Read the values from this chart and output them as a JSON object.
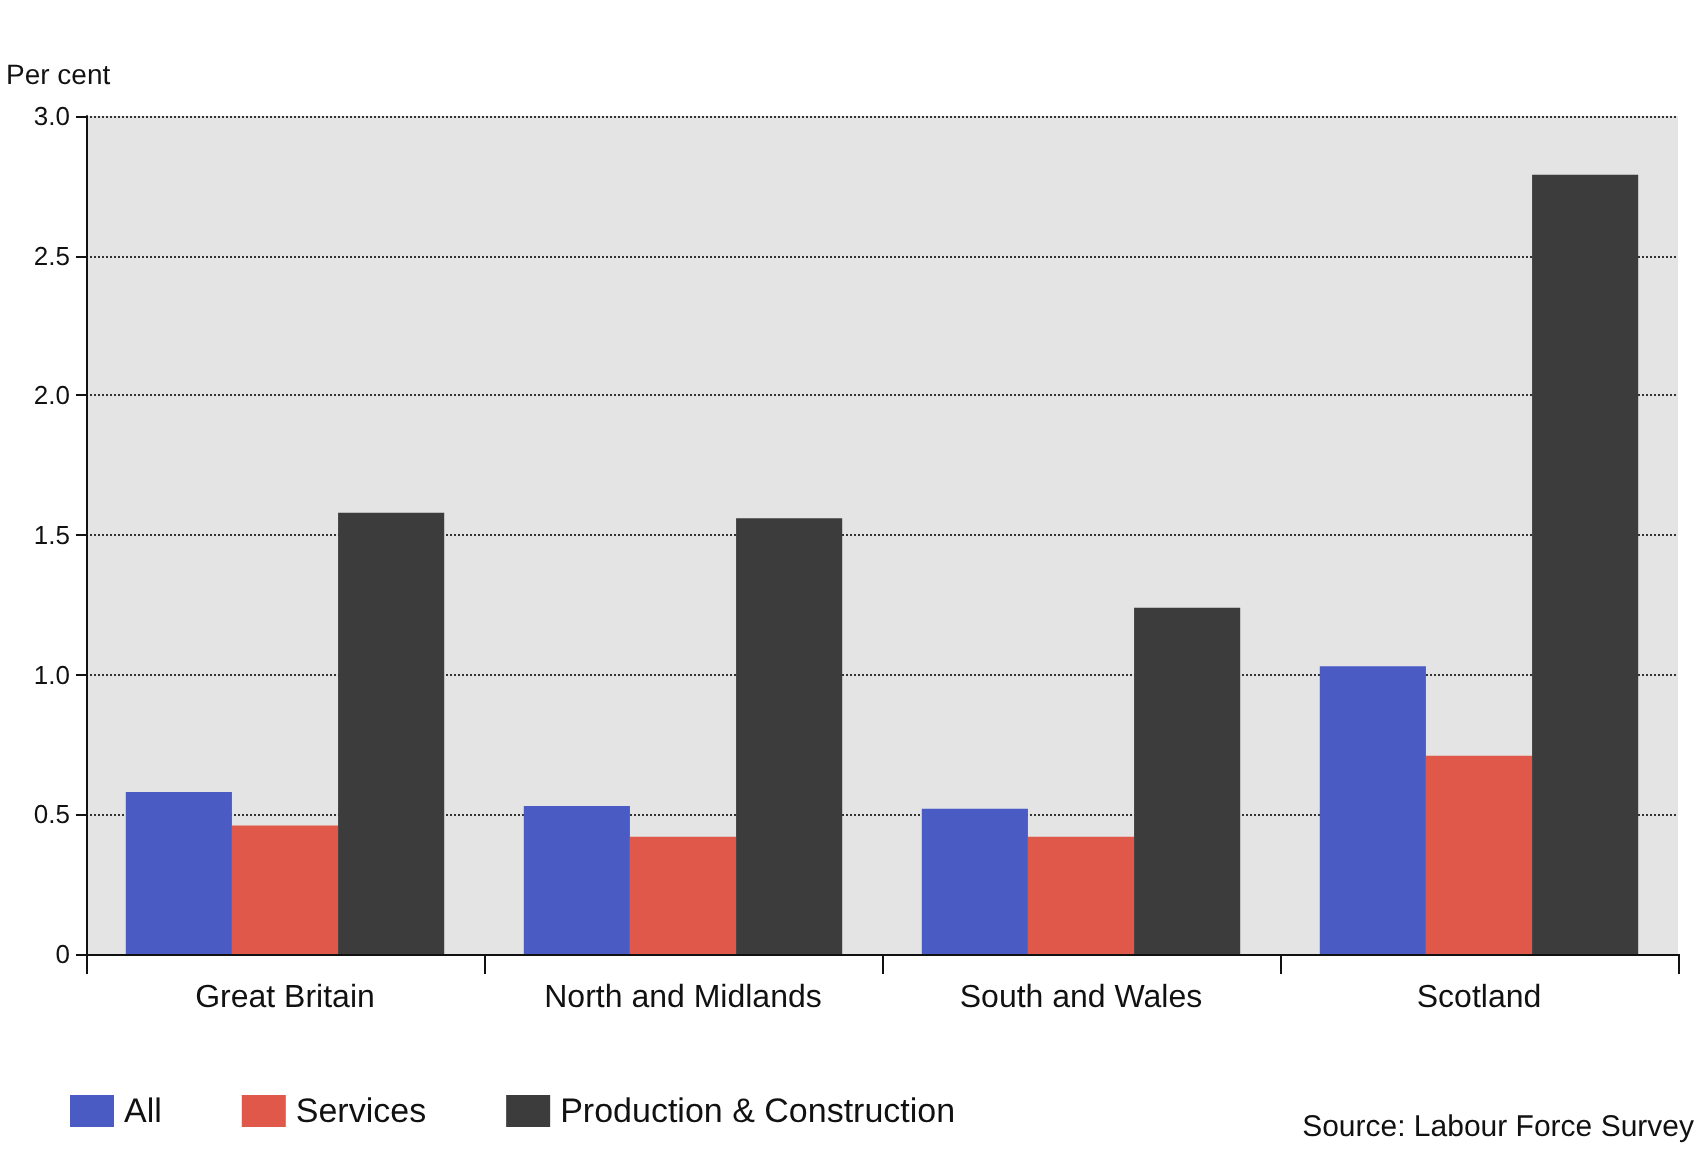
{
  "chart_data": {
    "type": "bar",
    "ylabel": "Per cent",
    "categories": [
      "Great Britain",
      "North and Midlands",
      "South and Wales",
      "Scotland"
    ],
    "series": [
      {
        "name": "All",
        "color": "#4a5cc4",
        "values": [
          0.58,
          0.53,
          0.52,
          1.03
        ]
      },
      {
        "name": "Services",
        "color": "#e0584a",
        "values": [
          0.46,
          0.42,
          0.42,
          0.71
        ]
      },
      {
        "name": "Production & Construction",
        "color": "#3c3c3c",
        "values": [
          1.58,
          1.56,
          1.24,
          2.79
        ]
      }
    ],
    "ylim": [
      0,
      3
    ],
    "yticks": [
      0,
      0.5,
      {
        "value": 1,
        "label": "1.0"
      },
      {
        "value": 1.5,
        "label": "1.5"
      },
      {
        "value": 2,
        "label": "2.0"
      },
      {
        "value": 2.5,
        "label": "2.5"
      },
      {
        "value": 3,
        "label": "3.0"
      }
    ],
    "grid": "y",
    "legend": "bottom left",
    "annotations": [
      "Source: Labour Force Survey"
    ]
  }
}
